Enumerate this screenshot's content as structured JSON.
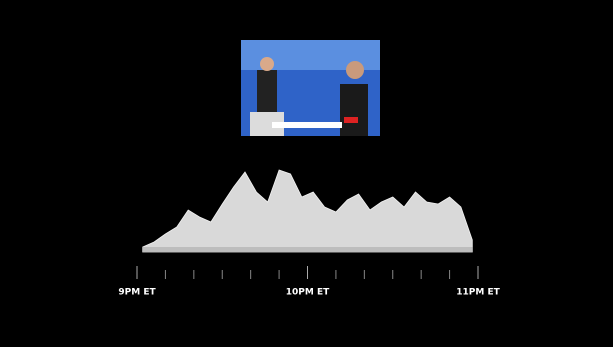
{
  "chart_data": {
    "type": "area",
    "x": [
      2,
      6,
      10,
      14,
      18,
      22,
      26,
      30,
      34,
      38,
      42,
      46,
      50,
      54,
      58,
      62,
      66,
      70,
      74,
      78,
      82,
      86,
      90,
      94,
      98,
      102,
      106,
      110,
      114,
      118
    ],
    "values": [
      5,
      10,
      18,
      25,
      42,
      35,
      30,
      48,
      65,
      80,
      60,
      50,
      82,
      78,
      55,
      60,
      45,
      40,
      52,
      58,
      42,
      50,
      55,
      45,
      60,
      50,
      48,
      55,
      45,
      12
    ],
    "color": "#d9d9d9",
    "xlim": [
      0,
      120
    ],
    "xticks": [
      {
        "value": 0,
        "label": "9PM ET"
      },
      {
        "value": 60,
        "label": "10PM ET"
      },
      {
        "value": 120,
        "label": "11PM ET"
      }
    ],
    "minor_xticks": [
      10,
      20,
      30,
      40,
      50,
      70,
      80,
      90,
      100,
      110
    ]
  }
}
